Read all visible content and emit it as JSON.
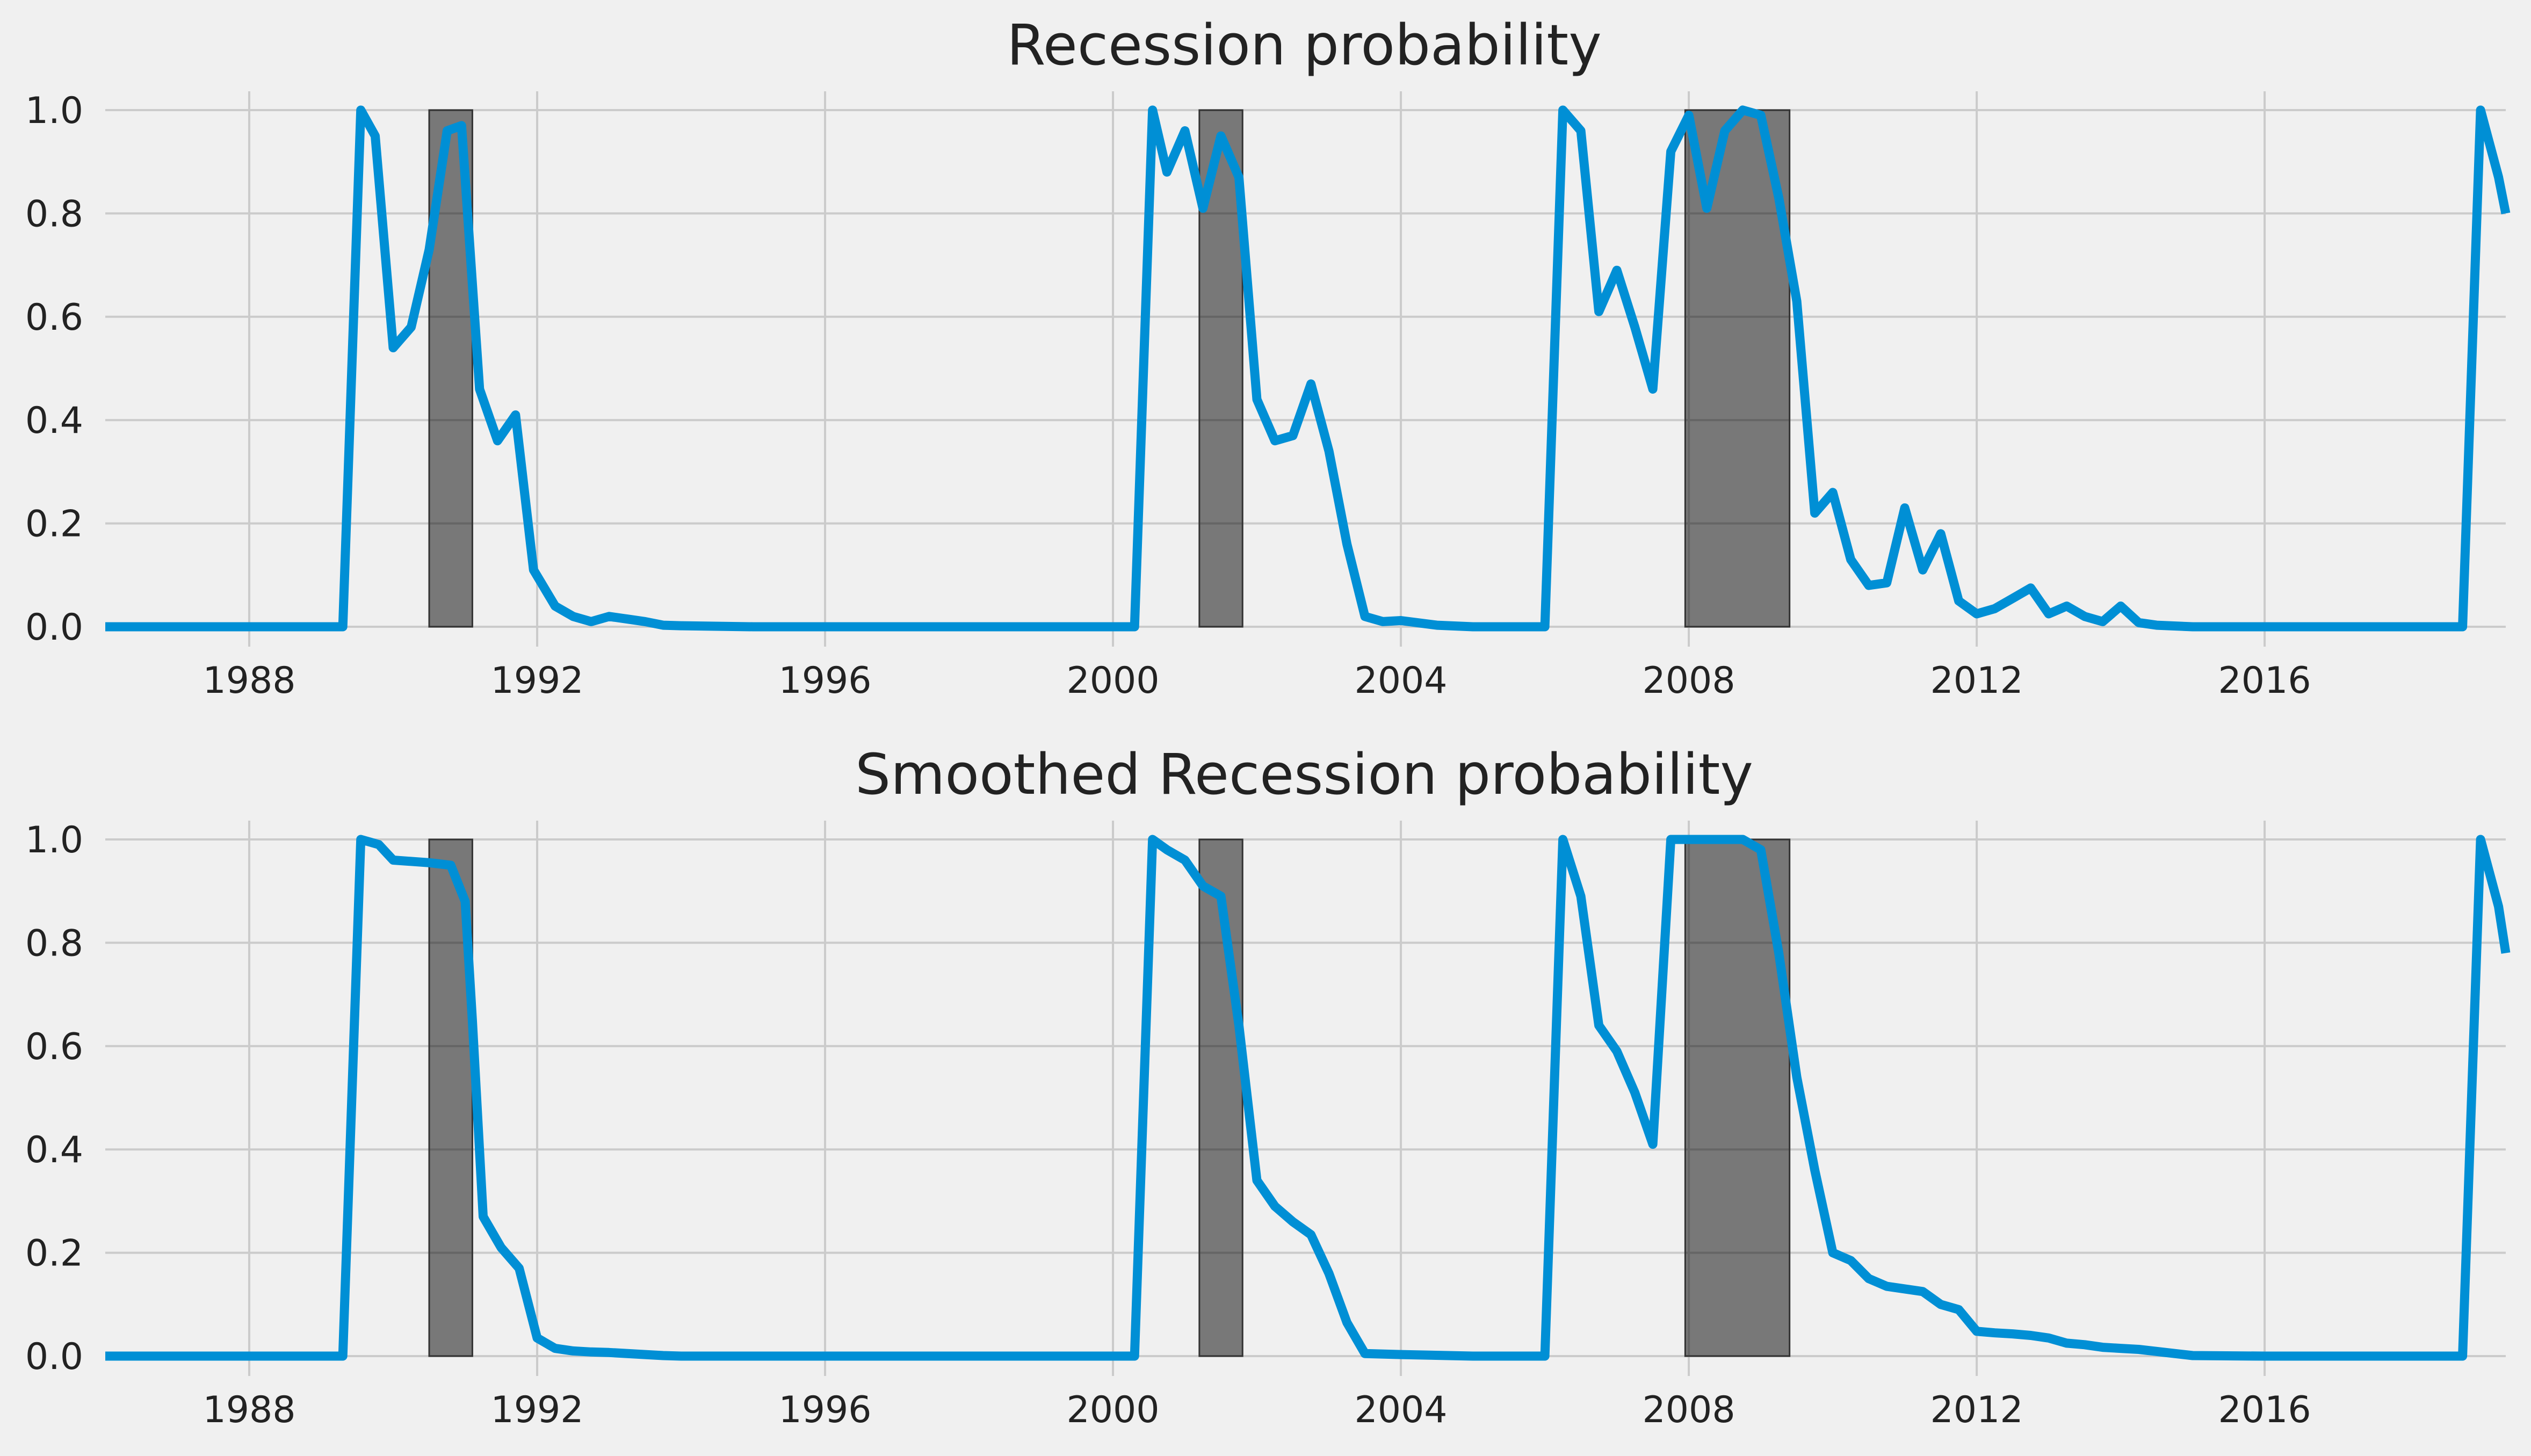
{
  "colors": {
    "background": "#f0f0f0",
    "grid": "#cbcbcb",
    "line": "#008fd5",
    "recession_shade": "#000000"
  },
  "chart_data": [
    {
      "type": "line",
      "title": "Recession probability",
      "xlabel": "",
      "ylabel": "",
      "xlim": [
        1986.0,
        2019.35
      ],
      "ylim": [
        0.0,
        1.0
      ],
      "grid": true,
      "legend": "none",
      "xticks": [
        "1988",
        "1992",
        "1996",
        "2000",
        "2004",
        "2008",
        "2012",
        "2016"
      ],
      "yticks": [
        "0.0",
        "0.2",
        "0.4",
        "0.6",
        "0.8",
        "1.0"
      ],
      "recession_periods": [
        [
          1990.5,
          1991.1
        ],
        [
          2001.2,
          2001.8
        ],
        [
          2007.95,
          2009.4
        ]
      ],
      "series": [
        {
          "x": [
            1986.0,
            1986.5,
            1987.0,
            1987.5,
            1988.0,
            1988.5,
            1989.0,
            1989.3,
            1989.55,
            1989.75,
            1990.0,
            1990.25,
            1990.5,
            1990.75,
            1990.95,
            1991.2,
            1991.45,
            1991.7,
            1991.95,
            1992.25,
            1992.5,
            1992.75,
            1993.0,
            1993.25,
            1993.5,
            1993.75,
            1994.0,
            1995.0,
            1996.0,
            1997.0,
            1998.0,
            1999.0,
            2000.0,
            2000.3,
            2000.55,
            2000.75,
            2001.0,
            2001.25,
            2001.5,
            2001.75,
            2002.0,
            2002.25,
            2002.5,
            2002.75,
            2003.0,
            2003.25,
            2003.5,
            2003.75,
            2004.0,
            2004.5,
            2005.0,
            2006.0,
            2006.25,
            2006.5,
            2006.75,
            2007.0,
            2007.25,
            2007.5,
            2007.75,
            2008.0,
            2008.25,
            2008.5,
            2008.75,
            2009.0,
            2009.25,
            2009.5,
            2009.75,
            2010.0,
            2010.25,
            2010.5,
            2010.75,
            2011.0,
            2011.25,
            2011.5,
            2011.75,
            2012.0,
            2012.25,
            2012.5,
            2012.75,
            2013.0,
            2013.25,
            2013.5,
            2013.75,
            2014.0,
            2014.25,
            2014.5,
            2015.0,
            2016.0,
            2017.0,
            2018.0,
            2018.75,
            2019.0,
            2019.25,
            2019.35
          ],
          "values": [
            0.0,
            0.0,
            0.0,
            0.0,
            0.0,
            0.0,
            0.0,
            0.0,
            1.0,
            0.95,
            0.54,
            0.58,
            0.73,
            0.96,
            0.97,
            0.46,
            0.36,
            0.41,
            0.11,
            0.04,
            0.02,
            0.01,
            0.02,
            0.015,
            0.01,
            0.003,
            0.002,
            0.0,
            0.0,
            0.0,
            0.0,
            0.0,
            0.0,
            0.0,
            1.0,
            0.88,
            0.96,
            0.81,
            0.95,
            0.87,
            0.44,
            0.36,
            0.37,
            0.47,
            0.34,
            0.16,
            0.02,
            0.01,
            0.012,
            0.003,
            0.0,
            0.0,
            1.0,
            0.96,
            0.61,
            0.69,
            0.58,
            0.46,
            0.92,
            0.99,
            0.81,
            0.96,
            1.0,
            0.99,
            0.83,
            0.63,
            0.22,
            0.26,
            0.13,
            0.08,
            0.085,
            0.23,
            0.11,
            0.18,
            0.05,
            0.025,
            0.035,
            0.055,
            0.075,
            0.025,
            0.04,
            0.02,
            0.01,
            0.04,
            0.008,
            0.003,
            0.0,
            0.0,
            0.0,
            0.0,
            0.0,
            1.0,
            0.87,
            0.8
          ]
        }
      ]
    },
    {
      "type": "line",
      "title": "Smoothed Recession probability",
      "xlabel": "",
      "ylabel": "",
      "xlim": [
        1986.0,
        2019.35
      ],
      "ylim": [
        0.0,
        1.0
      ],
      "grid": true,
      "legend": "none",
      "xticks": [
        "1988",
        "1992",
        "1996",
        "2000",
        "2004",
        "2008",
        "2012",
        "2016"
      ],
      "yticks": [
        "0.0",
        "0.2",
        "0.4",
        "0.6",
        "0.8",
        "1.0"
      ],
      "recession_periods": [
        [
          1990.5,
          1991.1
        ],
        [
          2001.2,
          2001.8
        ],
        [
          2007.95,
          2009.4
        ]
      ],
      "series": [
        {
          "x": [
            1986.0,
            1986.5,
            1987.0,
            1987.5,
            1988.0,
            1988.5,
            1989.0,
            1989.3,
            1989.55,
            1989.8,
            1990.0,
            1990.5,
            1990.8,
            1991.0,
            1991.1,
            1991.25,
            1991.5,
            1991.75,
            1992.0,
            1992.25,
            1992.5,
            1992.75,
            1993.0,
            1993.5,
            1993.75,
            1994.0,
            1995.0,
            1996.0,
            1997.0,
            1998.0,
            1999.0,
            2000.0,
            2000.3,
            2000.55,
            2000.75,
            2001.0,
            2001.25,
            2001.5,
            2001.75,
            2002.0,
            2002.25,
            2002.5,
            2002.75,
            2003.0,
            2003.25,
            2003.5,
            2004.0,
            2005.0,
            2006.0,
            2006.25,
            2006.5,
            2006.75,
            2007.0,
            2007.25,
            2007.5,
            2007.75,
            2008.0,
            2008.25,
            2008.5,
            2008.75,
            2009.0,
            2009.25,
            2009.5,
            2009.75,
            2010.0,
            2010.25,
            2010.5,
            2010.75,
            2011.0,
            2011.25,
            2011.5,
            2011.75,
            2012.0,
            2012.25,
            2012.5,
            2012.75,
            2013.0,
            2013.25,
            2013.5,
            2013.75,
            2014.0,
            2014.25,
            2015.0,
            2016.0,
            2017.0,
            2018.0,
            2018.75,
            2019.0,
            2019.25,
            2019.35
          ],
          "values": [
            0.0,
            0.0,
            0.0,
            0.0,
            0.0,
            0.0,
            0.0,
            0.0,
            1.0,
            0.99,
            0.96,
            0.955,
            0.95,
            0.88,
            0.65,
            0.27,
            0.21,
            0.17,
            0.035,
            0.015,
            0.01,
            0.008,
            0.007,
            0.003,
            0.001,
            0.0,
            0.0,
            0.0,
            0.0,
            0.0,
            0.0,
            0.0,
            0.0,
            1.0,
            0.98,
            0.96,
            0.91,
            0.89,
            0.64,
            0.34,
            0.29,
            0.26,
            0.235,
            0.16,
            0.065,
            0.005,
            0.003,
            0.0,
            0.0,
            1.0,
            0.89,
            0.64,
            0.59,
            0.51,
            0.41,
            1.0,
            1.0,
            1.0,
            1.0,
            1.0,
            0.98,
            0.78,
            0.54,
            0.36,
            0.2,
            0.185,
            0.15,
            0.135,
            0.13,
            0.125,
            0.1,
            0.09,
            0.048,
            0.045,
            0.043,
            0.04,
            0.035,
            0.025,
            0.022,
            0.017,
            0.015,
            0.013,
            0.001,
            0.0,
            0.0,
            0.0,
            0.0,
            1.0,
            0.87,
            0.78
          ]
        }
      ]
    }
  ]
}
